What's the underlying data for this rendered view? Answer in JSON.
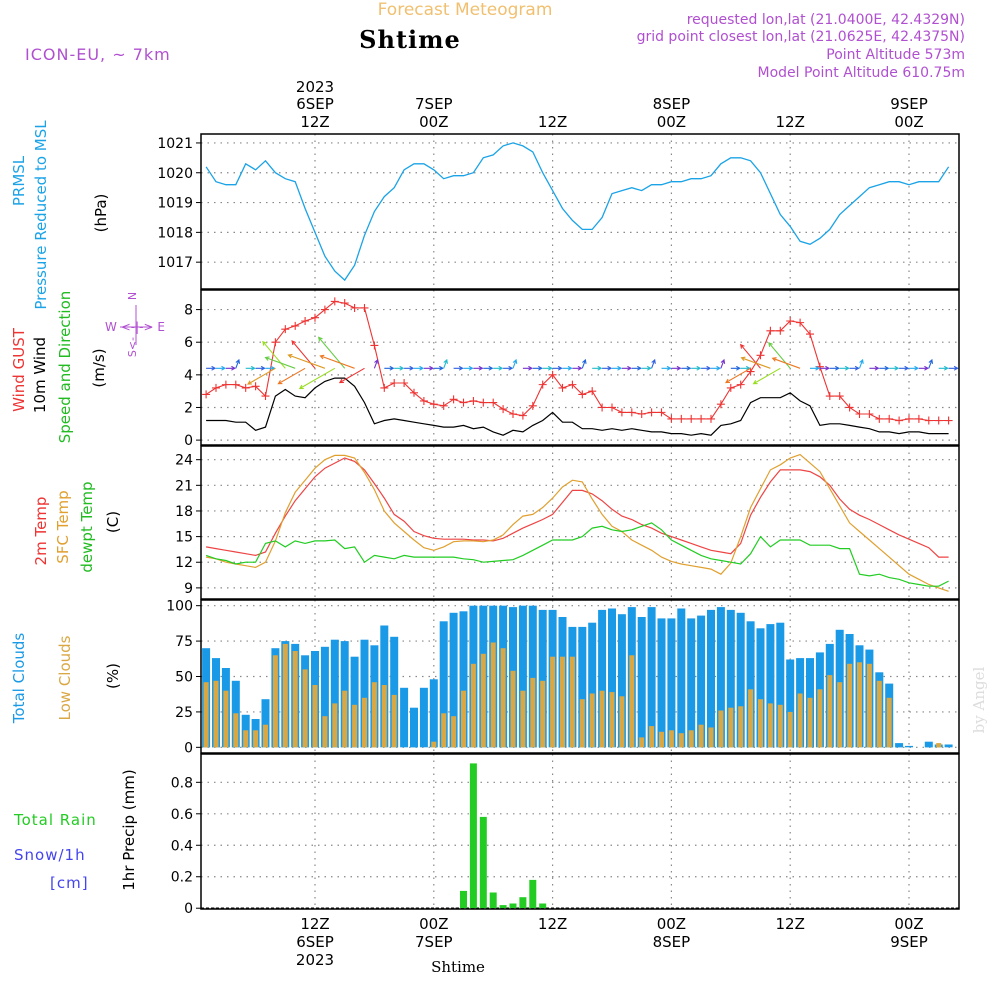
{
  "header": {
    "top_title": "Forecast Meteogram",
    "station": "Shtime",
    "model": "ICON-EU, ~ 7km",
    "requested": "requested lon,lat (21.0400E, 42.4329N)",
    "gridpoint": "grid point closest lon,lat (21.0625E, 42.4375N)",
    "point_alt": "Point Altitude 573m",
    "model_alt": "Model Point Altitude 610.75m",
    "watermark": "by Angel",
    "bottom_station": "Shtime"
  },
  "colors": {
    "pressure": "#1aa3e6",
    "gust": "#ee3333",
    "wind": "#000000",
    "t2m": "#ee4444",
    "sfc": "#e0a030",
    "dew": "#22cc22",
    "total_cloud": "#1a9ae6",
    "low_cloud": "#d9a845",
    "rain": "#22cc22",
    "snow": "#4444ee",
    "purple": "#b050d0"
  },
  "time_axis": {
    "top_labels": [
      {
        "t": 0,
        "l1": "2023",
        "l2": "6SEP",
        "l3": "12Z"
      },
      {
        "t": 12,
        "l1": "",
        "l2": "7SEP",
        "l3": "00Z"
      },
      {
        "t": 24,
        "l1": "",
        "l2": "",
        "l3": "12Z"
      },
      {
        "t": 36,
        "l1": "",
        "l2": "8SEP",
        "l3": "00Z"
      },
      {
        "t": 48,
        "l1": "",
        "l2": "",
        "l3": "12Z"
      },
      {
        "t": 60,
        "l1": "",
        "l2": "9SEP",
        "l3": "00Z"
      }
    ],
    "bottom_labels": [
      {
        "t": 0,
        "l1": "12Z",
        "l2": "6SEP",
        "l3": "2023"
      },
      {
        "t": 12,
        "l1": "00Z",
        "l2": "7SEP",
        "l3": ""
      },
      {
        "t": 24,
        "l1": "12Z",
        "l2": "",
        "l3": ""
      },
      {
        "t": 36,
        "l1": "00Z",
        "l2": "8SEP",
        "l3": ""
      },
      {
        "t": 48,
        "l1": "12Z",
        "l2": "",
        "l3": ""
      },
      {
        "t": 60,
        "l1": "00Z",
        "l2": "9SEP",
        "l3": ""
      }
    ]
  },
  "chart_data": [
    {
      "type": "line",
      "title": "PRMSL Pressure Reduced to MSL",
      "ylabel": "(hPa)",
      "ylabel_left": "PRMSL",
      "ylabel_left2": "Pressure Reduced to MSL",
      "yticks": [
        1017,
        1018,
        1019,
        1020,
        1021
      ],
      "ylim": [
        1016.1,
        1021.3
      ],
      "x": [
        -11,
        -10,
        -9,
        -8,
        -7,
        -6,
        -5,
        -4,
        -3,
        -2,
        -1,
        0,
        1,
        2,
        3,
        4,
        5,
        6,
        7,
        8,
        9,
        10,
        11,
        12,
        13,
        14,
        15,
        16,
        17,
        18,
        19,
        20,
        21,
        22,
        23,
        24,
        25,
        26,
        27,
        28,
        29,
        30,
        31,
        32,
        33,
        34,
        35,
        36,
        37,
        38,
        39,
        40,
        41,
        42,
        43,
        44,
        45,
        46,
        47,
        48,
        49,
        50,
        51,
        52,
        53,
        54,
        55,
        56,
        57,
        58,
        59,
        60,
        61,
        62,
        63,
        64
      ],
      "values": [
        1020.2,
        1019.7,
        1019.6,
        1019.6,
        1020.3,
        1020.1,
        1020.4,
        1020.0,
        1019.8,
        1019.7,
        1018.8,
        1018.0,
        1017.2,
        1016.7,
        1016.4,
        1016.9,
        1017.9,
        1018.7,
        1019.2,
        1019.5,
        1020.1,
        1020.3,
        1020.3,
        1020.1,
        1019.8,
        1019.9,
        1019.9,
        1020.0,
        1020.5,
        1020.6,
        1020.9,
        1021.0,
        1020.9,
        1020.7,
        1020.0,
        1019.4,
        1018.8,
        1018.4,
        1018.1,
        1018.1,
        1018.5,
        1019.3,
        1019.4,
        1019.5,
        1019.4,
        1019.6,
        1019.6,
        1019.7,
        1019.7,
        1019.8,
        1019.8,
        1019.9,
        1020.3,
        1020.5,
        1020.5,
        1020.4,
        1020.0,
        1019.3,
        1018.6,
        1018.2,
        1017.7,
        1017.6,
        1017.8,
        1018.1,
        1018.6,
        1018.9,
        1019.2,
        1019.5,
        1019.6,
        1019.7,
        1019.7,
        1019.6,
        1019.7,
        1019.7,
        1019.7,
        1020.2
      ]
    },
    {
      "type": "line",
      "title": "Wind GUST / 10m Wind Speed and Direction",
      "ylabel": "(m/s)",
      "ylabel_left": "Wind GUST",
      "ylabel_left2": "10m Wind",
      "ylabel_left3": "Speed and Direction",
      "compass_n": "N",
      "compass_s": "S",
      "compass_we": "W <-|-> E",
      "compass_s2": "S<-",
      "yticks": [
        0,
        2,
        4,
        6,
        8
      ],
      "ylim": [
        -0.3,
        9.2
      ],
      "x": [
        -11,
        -10,
        -9,
        -8,
        -7,
        -6,
        -5,
        -4,
        -3,
        -2,
        -1,
        0,
        1,
        2,
        3,
        4,
        5,
        6,
        7,
        8,
        9,
        10,
        11,
        12,
        13,
        14,
        15,
        16,
        17,
        18,
        19,
        20,
        21,
        22,
        23,
        24,
        25,
        26,
        27,
        28,
        29,
        30,
        31,
        32,
        33,
        34,
        35,
        36,
        37,
        38,
        39,
        40,
        41,
        42,
        43,
        44,
        45,
        46,
        47,
        48,
        49,
        50,
        51,
        52,
        53,
        54,
        55,
        56,
        57,
        58,
        59,
        60,
        61,
        62,
        63,
        64
      ],
      "series": [
        {
          "name": "Wind GUST",
          "values": [
            2.8,
            3.2,
            3.4,
            3.4,
            3.2,
            3.3,
            2.7,
            6.0,
            6.8,
            7.0,
            7.3,
            7.5,
            8.0,
            8.5,
            8.4,
            8.1,
            8.1,
            5.8,
            3.2,
            3.5,
            3.5,
            2.9,
            2.4,
            2.2,
            2.1,
            2.5,
            2.3,
            2.4,
            2.3,
            2.3,
            1.9,
            1.6,
            1.5,
            2.1,
            3.4,
            4.0,
            3.2,
            3.4,
            2.8,
            3.0,
            2.0,
            2.0,
            1.7,
            1.7,
            1.6,
            1.7,
            1.7,
            1.3,
            1.3,
            1.3,
            1.3,
            1.3,
            2.2,
            3.2,
            3.4,
            4.2,
            5.2,
            6.7,
            6.7,
            7.3,
            7.2,
            6.5,
            4.5,
            2.7,
            2.7,
            2.0,
            1.6,
            1.6,
            1.3,
            1.3,
            1.2,
            1.3,
            1.3,
            1.2,
            1.2,
            1.2
          ]
        },
        {
          "name": "10m Wind",
          "values": [
            1.2,
            1.2,
            1.2,
            1.1,
            1.1,
            0.6,
            0.8,
            2.7,
            3.1,
            2.7,
            2.6,
            3.2,
            3.6,
            3.8,
            3.8,
            3.3,
            2.3,
            1.0,
            1.2,
            1.3,
            1.2,
            1.1,
            1.0,
            0.9,
            0.8,
            0.8,
            0.9,
            0.7,
            0.8,
            0.5,
            0.3,
            0.6,
            0.5,
            0.9,
            1.2,
            1.7,
            1.1,
            1.1,
            0.7,
            0.7,
            0.6,
            0.7,
            0.6,
            0.7,
            0.6,
            0.5,
            0.5,
            0.4,
            0.4,
            0.3,
            0.4,
            0.3,
            0.9,
            1.0,
            1.2,
            2.3,
            2.6,
            2.6,
            2.6,
            2.9,
            2.4,
            2.1,
            0.9,
            1.0,
            1.0,
            0.9,
            0.8,
            0.7,
            0.5,
            0.5,
            0.4,
            0.5,
            0.5,
            0.4,
            0.4,
            0.4
          ]
        }
      ]
    },
    {
      "type": "line",
      "title": "2m Temp / SFC Temp / dewpt Temp",
      "ylabel": "(C)",
      "ylabel_left": "2m Temp",
      "ylabel_left2": "SFC Temp",
      "ylabel_left3": "dewpt Temp",
      "yticks": [
        9,
        12,
        15,
        18,
        21,
        24
      ],
      "ylim": [
        7.7,
        25.6
      ],
      "x": [
        -11,
        -10,
        -9,
        -8,
        -7,
        -6,
        -5,
        -4,
        -3,
        -2,
        -1,
        0,
        1,
        2,
        3,
        4,
        5,
        6,
        7,
        8,
        9,
        10,
        11,
        12,
        13,
        14,
        15,
        16,
        17,
        18,
        19,
        20,
        21,
        22,
        23,
        24,
        25,
        26,
        27,
        28,
        29,
        30,
        31,
        32,
        33,
        34,
        35,
        36,
        37,
        38,
        39,
        40,
        41,
        42,
        43,
        44,
        45,
        46,
        47,
        48,
        49,
        50,
        51,
        52,
        53,
        54,
        55,
        56,
        57,
        58,
        59,
        60,
        61,
        62,
        63,
        64
      ],
      "series": [
        {
          "name": "2m Temp",
          "values": [
            13.8,
            13.6,
            13.4,
            13.2,
            13.0,
            12.8,
            13.2,
            15.4,
            17.4,
            19.2,
            20.6,
            22.0,
            23.0,
            23.6,
            24.2,
            23.8,
            22.8,
            21.2,
            19.5,
            17.6,
            16.8,
            15.6,
            15.1,
            14.8,
            14.7,
            14.7,
            14.7,
            14.6,
            14.6,
            14.5,
            14.8,
            15.4,
            16.0,
            16.5,
            17.0,
            17.6,
            19.0,
            20.4,
            20.4,
            20.0,
            19.2,
            18.2,
            17.4,
            17.0,
            16.4,
            16.0,
            15.4,
            15.0,
            14.6,
            14.2,
            13.8,
            13.4,
            13.2,
            13.0,
            14.2,
            17.5,
            19.6,
            21.4,
            22.8,
            22.8,
            22.8,
            22.6,
            22.0,
            21.0,
            19.4,
            18.2,
            17.5,
            17.0,
            16.4,
            15.8,
            15.2,
            14.7,
            14.2,
            13.7,
            12.6,
            12.6
          ]
        },
        {
          "name": "SFC Temp",
          "values": [
            12.6,
            12.4,
            12.0,
            11.8,
            11.6,
            11.4,
            12.0,
            14.5,
            17.8,
            20.2,
            21.6,
            23.0,
            24.0,
            24.5,
            24.5,
            24.2,
            22.5,
            20.5,
            18.0,
            16.6,
            15.6,
            14.6,
            13.7,
            13.4,
            13.8,
            14.4,
            14.5,
            14.5,
            14.4,
            14.6,
            15.2,
            16.4,
            17.4,
            17.6,
            18.4,
            19.5,
            20.8,
            21.6,
            21.4,
            19.4,
            17.6,
            16.2,
            15.6,
            14.6,
            14.0,
            13.4,
            12.6,
            12.1,
            11.8,
            11.6,
            11.4,
            11.2,
            10.6,
            11.9,
            15.0,
            18.4,
            20.6,
            22.8,
            23.4,
            24.2,
            24.6,
            23.6,
            22.6,
            20.6,
            18.6,
            16.6,
            15.6,
            14.6,
            13.6,
            12.6,
            11.6,
            10.6,
            10.0,
            9.4,
            9.0,
            8.6
          ]
        },
        {
          "name": "dewpt Temp",
          "values": [
            12.8,
            12.4,
            12.2,
            11.8,
            12.0,
            12.0,
            14.2,
            14.5,
            13.8,
            14.5,
            14.2,
            14.5,
            14.5,
            14.6,
            13.6,
            13.8,
            12.0,
            12.8,
            12.6,
            12.4,
            12.8,
            12.6,
            12.6,
            12.6,
            12.6,
            12.6,
            12.4,
            12.3,
            12.0,
            12.1,
            12.2,
            12.3,
            12.8,
            13.4,
            14.0,
            14.6,
            14.6,
            14.6,
            15.0,
            16.0,
            16.2,
            15.8,
            15.6,
            15.8,
            16.2,
            16.6,
            15.8,
            14.6,
            14.0,
            13.4,
            12.8,
            12.4,
            12.2,
            12.0,
            11.8,
            13.0,
            15.0,
            13.8,
            14.6,
            14.6,
            14.6,
            14.0,
            14.0,
            14.0,
            13.6,
            13.6,
            10.6,
            10.4,
            10.6,
            10.2,
            10.0,
            9.6,
            9.4,
            9.2,
            9.2,
            9.8
          ]
        }
      ]
    },
    {
      "type": "bar",
      "title": "Total Clouds / Low Clouds",
      "ylabel": "(%)",
      "ylabel_left": "Total Clouds",
      "ylabel_left2": "Low Clouds",
      "yticks": [
        0,
        25,
        50,
        75,
        100
      ],
      "ylim": [
        -4,
        104
      ],
      "x": [
        -11,
        -10,
        -9,
        -8,
        -7,
        -6,
        -5,
        -4,
        -3,
        -2,
        -1,
        0,
        1,
        2,
        3,
        4,
        5,
        6,
        7,
        8,
        9,
        10,
        11,
        12,
        13,
        14,
        15,
        16,
        17,
        18,
        19,
        20,
        21,
        22,
        23,
        24,
        25,
        26,
        27,
        28,
        29,
        30,
        31,
        32,
        33,
        34,
        35,
        36,
        37,
        38,
        39,
        40,
        41,
        42,
        43,
        44,
        45,
        46,
        47,
        48,
        49,
        50,
        51,
        52,
        53,
        54,
        55,
        56,
        57,
        58,
        59,
        60,
        61,
        62,
        63,
        64
      ],
      "series": [
        {
          "name": "Total Clouds",
          "values": [
            70,
            63,
            56,
            47,
            23,
            20,
            34,
            70,
            75,
            73,
            65,
            68,
            71,
            76,
            75,
            64,
            76,
            72,
            86,
            78,
            42,
            28,
            42,
            48,
            89,
            95,
            96,
            100,
            100,
            100,
            100,
            99,
            100,
            100,
            97,
            97,
            92,
            85,
            85,
            88,
            97,
            98,
            94,
            99,
            92,
            99,
            91,
            91,
            98,
            91,
            93,
            97,
            99,
            97,
            95,
            89,
            84,
            87,
            88,
            62,
            63,
            63,
            67,
            73,
            83,
            80,
            72,
            69,
            53,
            45,
            3,
            1,
            0,
            4,
            2,
            2
          ]
        },
        {
          "name": "Low Clouds",
          "values": [
            46,
            47,
            40,
            24,
            12,
            12,
            16,
            65,
            73,
            68,
            55,
            44,
            22,
            31,
            40,
            30,
            35,
            46,
            44,
            37,
            0,
            0,
            0,
            4,
            24,
            22,
            40,
            59,
            66,
            74,
            70,
            54,
            40,
            49,
            47,
            64,
            64,
            64,
            34,
            38,
            40,
            39,
            36,
            65,
            7,
            15,
            11,
            12,
            10,
            12,
            16,
            14,
            26,
            28,
            29,
            41,
            34,
            31,
            30,
            25,
            38,
            35,
            41,
            51,
            46,
            59,
            60,
            59,
            47,
            35,
            0,
            0,
            0,
            0,
            3,
            0
          ]
        }
      ]
    },
    {
      "type": "bar",
      "title": "1hr Precip",
      "ylabel": "1hr Precip (mm)",
      "ylabel_left": "Total   Rain",
      "ylabel_left2": "Snow/1h",
      "ylabel_left3": "[cm]",
      "yticks": [
        0,
        0.2,
        0.4,
        0.6,
        0.8
      ],
      "ylim": [
        -0.005,
        0.98
      ],
      "x": [
        15,
        16,
        17,
        18,
        19,
        20,
        21,
        22,
        23
      ],
      "values": [
        0.11,
        0.92,
        0.58,
        0.1,
        0.02,
        0.03,
        0.07,
        0.18,
        0.03
      ],
      "tick_labels": [
        "0",
        "0.2",
        "0.4",
        "0.6",
        "0.8"
      ]
    }
  ]
}
